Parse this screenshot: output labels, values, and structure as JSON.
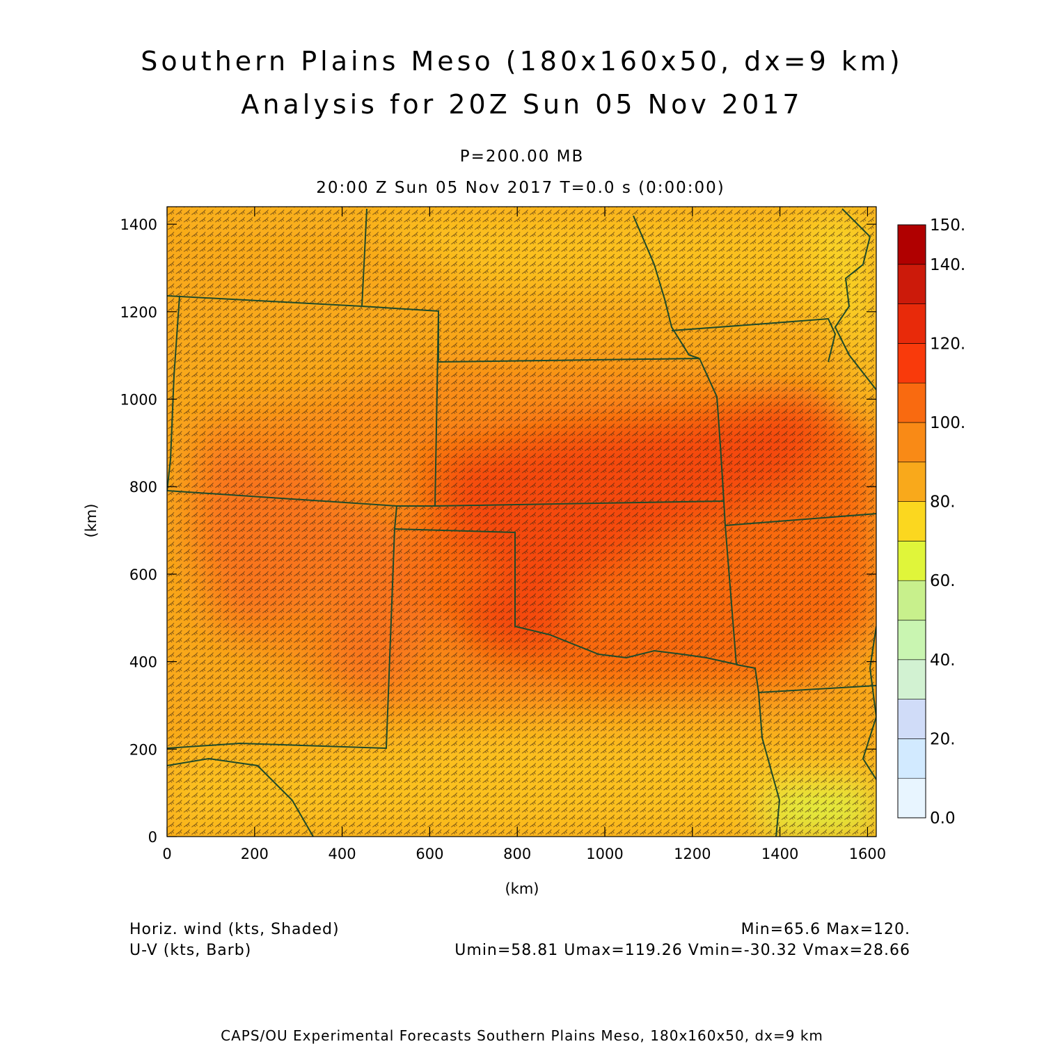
{
  "header": {
    "title_line1": "Southern Plains Meso (180x160x50, dx=9 km)",
    "title_line2": "Analysis for 20Z Sun 05 Nov 2017",
    "level": "P=200.00 MB",
    "valid_time": "20:00 Z Sun 05 Nov 2017    T=0.0 s (0:00:00)"
  },
  "map": {
    "x_ticks": [
      "0",
      "200",
      "400",
      "600",
      "800",
      "1000",
      "1200",
      "1400",
      "1600"
    ],
    "y_ticks": [
      "0",
      "200",
      "400",
      "600",
      "800",
      "1000",
      "1200",
      "1400"
    ],
    "xlabel": "(km)",
    "ylabel": "(km)",
    "x_range_km": [
      0,
      1620
    ],
    "y_range_km": [
      0,
      1440
    ],
    "field": "horizontal wind speed (kts), shaded, with wind barbs",
    "boundaries": "US state borders (Colorado, Kansas, Nebraska, Missouri, Oklahoma, Texas, New Mexico, Arkansas)",
    "colors": {
      "state_lines": "#1f4a2a",
      "barbs": "#3a2410"
    }
  },
  "colorbar": {
    "labels": [
      "0.0",
      "20.",
      "40.",
      "60.",
      "80.",
      "100.",
      "120.",
      "140.",
      "150."
    ],
    "bins": [
      {
        "min": 0,
        "max": 10,
        "color": "#e8f5ff"
      },
      {
        "min": 10,
        "max": 20,
        "color": "#d2eaff"
      },
      {
        "min": 20,
        "max": 30,
        "color": "#d0dcf8"
      },
      {
        "min": 30,
        "max": 40,
        "color": "#d2f2d2"
      },
      {
        "min": 40,
        "max": 50,
        "color": "#c9f5b1"
      },
      {
        "min": 50,
        "max": 60,
        "color": "#c8f08c"
      },
      {
        "min": 60,
        "max": 70,
        "color": "#e0f53a"
      },
      {
        "min": 70,
        "max": 80,
        "color": "#fbd71f"
      },
      {
        "min": 80,
        "max": 90,
        "color": "#f9a91b"
      },
      {
        "min": 90,
        "max": 100,
        "color": "#f98a16"
      },
      {
        "min": 100,
        "max": 110,
        "color": "#f96a10"
      },
      {
        "min": 110,
        "max": 120,
        "color": "#f93a0b"
      },
      {
        "min": 120,
        "max": 130,
        "color": "#e82a0a"
      },
      {
        "min": 130,
        "max": 140,
        "color": "#cc1a0a"
      },
      {
        "min": 140,
        "max": 150,
        "color": "#b00000"
      }
    ]
  },
  "footer_info": {
    "left1": "Horiz. wind (kts, Shaded)",
    "left2": "U-V (kts, Barb)",
    "right1": "Min=65.6 Max=120.",
    "right2": "Umin=58.81 Umax=119.26 Vmin=-30.32 Vmax=28.66",
    "credit": "CAPS/OU Experimental Forecasts  Southern Plains Meso, 180x160x50, dx=9 km"
  }
}
